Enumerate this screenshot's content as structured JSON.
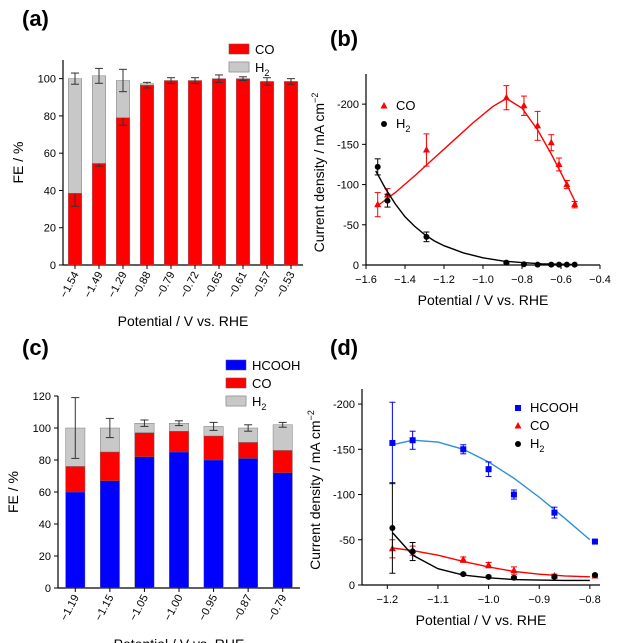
{
  "panel_labels": [
    "(a)",
    "(b)",
    "(c)",
    "(d)"
  ],
  "chart_data": [
    {
      "panel": "(a)",
      "type": "bar",
      "stacked": true,
      "xlabel": "Potential / V vs. RHE",
      "ylabel": "FE / %",
      "ylim": [
        0,
        110
      ],
      "yticks": [
        0,
        20,
        40,
        60,
        80,
        100
      ],
      "categories": [
        "−1.54",
        "−1.49",
        "−1.29",
        "−0.88",
        "−0.79",
        "−0.72",
        "−0.65",
        "−0.61",
        "−0.57",
        "−0.53"
      ],
      "series": [
        {
          "name": "CO",
          "values": [
            38.5,
            54.5,
            79,
            96.5,
            99,
            99,
            100,
            100,
            98.5,
            98.5
          ],
          "errors": [
            7,
            1.5,
            4,
            1.5,
            1.5,
            1.5,
            2,
            1,
            2,
            1.5
          ]
        },
        {
          "name": "H2",
          "values": [
            61.5,
            47,
            20,
            0.8,
            0,
            0,
            0,
            0,
            0,
            0
          ],
          "errors": [
            3,
            4,
            6,
            0,
            0,
            0,
            0,
            0,
            0,
            0
          ]
        }
      ],
      "legend": {
        "position": "top-right"
      },
      "colors": [
        "#ff0000",
        "#c8c8c8"
      ]
    },
    {
      "panel": "(b)",
      "type": "scatter",
      "xlabel": "Potential / V vs. RHE",
      "ylabel": "Current density / mA cm",
      "ylabel_sup": "−2",
      "xlim": [
        -1.6,
        -0.4
      ],
      "ylim": [
        0,
        -230
      ],
      "xticks": [
        -1.6,
        -1.4,
        -1.2,
        -1.0,
        -0.8,
        -0.6,
        -0.4
      ],
      "xtick_labels": [
        "−1.6",
        "−1.4",
        "−1.2",
        "−1.0",
        "−0.8",
        "−0.6",
        "−0.4"
      ],
      "yticks": [
        0,
        -50,
        -100,
        -150,
        -200
      ],
      "ytick_labels": [
        "0",
        "-50",
        "-100",
        "-150",
        "-200"
      ],
      "series": [
        {
          "name": "CO",
          "x": [
            -1.54,
            -1.49,
            -1.29,
            -0.88,
            -0.79,
            -0.72,
            -0.65,
            -0.61,
            -0.57,
            -0.53
          ],
          "y": [
            -75,
            -87,
            -143,
            -208,
            -198,
            -173,
            -152,
            -125,
            -100,
            -75
          ],
          "errors": [
            15,
            8,
            20,
            15,
            12,
            18,
            10,
            8,
            5,
            4
          ],
          "fit_x": [
            -1.55,
            -1.45,
            -1.35,
            -1.25,
            -1.15,
            -1.05,
            -0.95,
            -0.88,
            -0.8,
            -0.72,
            -0.65,
            -0.58,
            -0.52
          ],
          "fit_y": [
            -72,
            -90,
            -111,
            -133,
            -155,
            -177,
            -197,
            -207,
            -195,
            -168,
            -138,
            -105,
            -75
          ]
        },
        {
          "name": "H2",
          "x": [
            -1.54,
            -1.49,
            -1.29,
            -0.88,
            -0.79,
            -0.72,
            -0.65,
            -0.61,
            -0.57,
            -0.53
          ],
          "y": [
            -122,
            -80,
            -35,
            -3,
            -1,
            -0.5,
            -0.5,
            -0.5,
            -0.5,
            -0.5
          ],
          "errors": [
            10,
            8,
            6,
            1,
            0,
            0,
            0,
            0,
            0,
            0
          ],
          "fit_x": [
            -1.55,
            -1.5,
            -1.45,
            -1.4,
            -1.35,
            -1.3,
            -1.25,
            -1.2,
            -1.1,
            -1.0,
            -0.9,
            -0.8,
            -0.7,
            -0.6,
            -0.52
          ],
          "fit_y": [
            -117,
            -95,
            -76,
            -60,
            -48,
            -38,
            -30,
            -24,
            -15,
            -9,
            -5,
            -3,
            -1.5,
            -1,
            -0.5
          ]
        }
      ],
      "legend": {
        "position": "top-left"
      },
      "colors": [
        "#ff0000",
        "#000000"
      ]
    },
    {
      "panel": "(c)",
      "type": "bar",
      "stacked": true,
      "xlabel": "Potential / V vs. RHE",
      "ylabel": "FE / %",
      "ylim": [
        0,
        120
      ],
      "yticks": [
        0,
        20,
        40,
        60,
        80,
        100,
        120
      ],
      "categories": [
        "−1.19",
        "−1.15",
        "−1.05",
        "−1.00",
        "−0.95",
        "−0.87",
        "−0.79"
      ],
      "series": [
        {
          "name": "HCOOH",
          "values": [
            60,
            67,
            82,
            85,
            80,
            81,
            72
          ],
          "errors": [
            0,
            0,
            0,
            0,
            0,
            0,
            0
          ]
        },
        {
          "name": "CO",
          "values": [
            16,
            18,
            15,
            13,
            15,
            10,
            14
          ],
          "errors": [
            0,
            0,
            0,
            0,
            0,
            0,
            0
          ]
        },
        {
          "name": "H2",
          "values": [
            24,
            15,
            6,
            5,
            6,
            9,
            16
          ],
          "errors": [
            19,
            6,
            2,
            1.5,
            2.5,
            2,
            1.5
          ]
        }
      ],
      "legend": {
        "position": "top-right"
      },
      "colors": [
        "#0000ff",
        "#ff0000",
        "#c8c8c8"
      ]
    },
    {
      "panel": "(d)",
      "type": "scatter",
      "xlabel": "Potential / V vs. RHE",
      "ylabel": "Current density / mA cm",
      "ylabel_sup": "−2",
      "xlim": [
        -1.25,
        -0.78
      ],
      "ylim": [
        0,
        -210
      ],
      "xticks": [
        -1.2,
        -1.1,
        -1.0,
        -0.9,
        -0.8
      ],
      "xtick_labels": [
        "−1.2",
        "−1.1",
        "−1.0",
        "−0.9",
        "−0.8"
      ],
      "yticks": [
        0,
        -50,
        -100,
        -150,
        -200
      ],
      "ytick_labels": [
        "0",
        "-50",
        "-100",
        "-150",
        "-200"
      ],
      "series": [
        {
          "name": "HCOOH",
          "x": [
            -1.19,
            -1.15,
            -1.05,
            -1.0,
            -0.95,
            -0.87,
            -0.79
          ],
          "y": [
            -157,
            -160,
            -150,
            -128,
            -100,
            -80,
            -48
          ],
          "errors": [
            45,
            10,
            5,
            8,
            5,
            6,
            2
          ],
          "fit_x": [
            -1.19,
            -1.15,
            -1.1,
            -1.05,
            -1.0,
            -0.95,
            -0.9,
            -0.85,
            -0.8
          ],
          "fit_y": [
            -155,
            -160,
            -158,
            -150,
            -136,
            -118,
            -97,
            -74,
            -50
          ]
        },
        {
          "name": "CO",
          "x": [
            -1.19,
            -1.15,
            -1.05,
            -1.0,
            -0.95,
            -0.87,
            -0.79
          ],
          "y": [
            -40,
            -38,
            -28,
            -22,
            -16,
            -10,
            -10
          ],
          "errors": [
            10,
            5,
            3,
            3,
            4,
            2,
            1
          ],
          "fit_x": [
            -1.19,
            -1.15,
            -1.1,
            -1.05,
            -1.0,
            -0.95,
            -0.9,
            -0.85,
            -0.8
          ],
          "fit_y": [
            -41,
            -38,
            -33,
            -26,
            -20,
            -15,
            -12,
            -10,
            -9
          ]
        },
        {
          "name": "H2",
          "x": [
            -1.19,
            -1.15,
            -1.05,
            -1.0,
            -0.95,
            -0.87,
            -0.79
          ],
          "y": [
            -63,
            -37,
            -12,
            -9,
            -8,
            -9,
            -11
          ],
          "errors": [
            50,
            10,
            1,
            1,
            1,
            1,
            1
          ],
          "fit_x": [
            -1.19,
            -1.15,
            -1.1,
            -1.05,
            -1.0,
            -0.95,
            -0.9,
            -0.85,
            -0.8
          ],
          "fit_y": [
            -58,
            -33,
            -18,
            -11,
            -8,
            -6,
            -5.5,
            -5,
            -5
          ]
        }
      ],
      "legend": {
        "position": "top-right"
      },
      "colors": [
        "#0000ff",
        "#ff0000",
        "#000000",
        "#2b8fd8"
      ]
    }
  ]
}
